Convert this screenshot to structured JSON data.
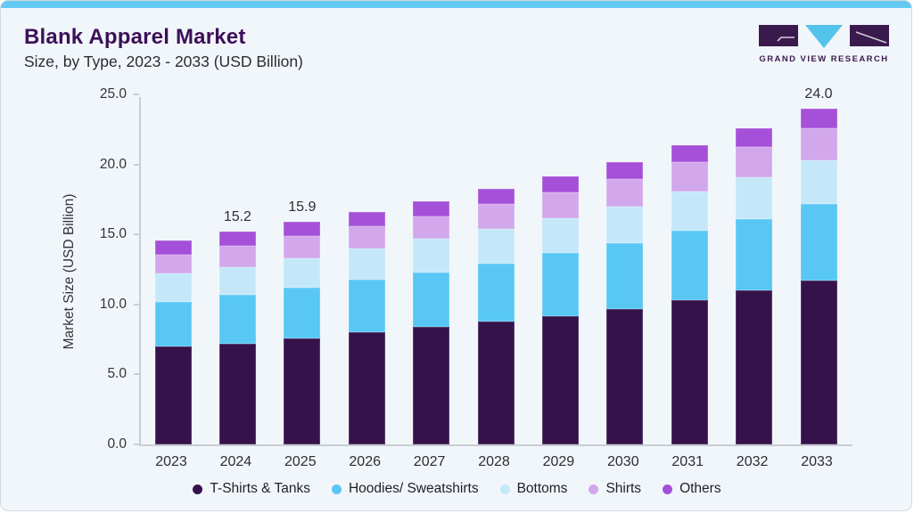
{
  "card": {
    "background": "#F1F6FA",
    "top_strip_color": "#63C8F2",
    "border_color": "#D3D9DF"
  },
  "header": {
    "title": "Blank Apparel Market",
    "subtitle": "Size, by Type, 2023 - 2033 (USD Billion)",
    "title_color": "#3C1058"
  },
  "logo": {
    "text": "GRAND VIEW RESEARCH",
    "block_color": "#3A1A4D",
    "triangle_color": "#54C3EC",
    "text_color": "#3B1B4F",
    "glyph_line_color": "#CFC9D8"
  },
  "chart_data": {
    "type": "bar",
    "stacked": true,
    "title": "Blank Apparel Market Size, by Type, 2023 - 2033 (USD Billion)",
    "xlabel": "",
    "ylabel": "Market Size (USD Billion)",
    "ylim": [
      0,
      25
    ],
    "ytick_labels": [
      "0.0",
      "5.0",
      "10.0",
      "15.0",
      "20.0",
      "25.0"
    ],
    "grid": false,
    "legend_position": "bottom",
    "categories": [
      "2023",
      "2024",
      "2025",
      "2026",
      "2027",
      "2028",
      "2029",
      "2030",
      "2031",
      "2032",
      "2033"
    ],
    "series": [
      {
        "name": "T-Shirts & Tanks",
        "color": "#36124B",
        "values": [
          7.0,
          7.2,
          7.6,
          8.0,
          8.4,
          8.8,
          9.2,
          9.7,
          10.3,
          11.0,
          11.7
        ]
      },
      {
        "name": "Hoodies/ Sweatshirts",
        "color": "#58C7F4",
        "values": [
          3.2,
          3.5,
          3.6,
          3.8,
          3.9,
          4.1,
          4.5,
          4.7,
          5.0,
          5.1,
          5.5
        ]
      },
      {
        "name": "Bottoms",
        "color": "#C4E8F9",
        "values": [
          2.0,
          2.0,
          2.1,
          2.2,
          2.4,
          2.5,
          2.5,
          2.6,
          2.8,
          3.0,
          3.1
        ]
      },
      {
        "name": "Shirts",
        "color": "#D2A7EC",
        "values": [
          1.4,
          1.5,
          1.6,
          1.6,
          1.6,
          1.8,
          1.8,
          2.0,
          2.1,
          2.2,
          2.3
        ]
      },
      {
        "name": "Others",
        "color": "#A550D8",
        "values": [
          1.0,
          1.0,
          1.0,
          1.0,
          1.1,
          1.1,
          1.2,
          1.2,
          1.2,
          1.3,
          1.4
        ]
      }
    ],
    "totals": [
      14.6,
      15.2,
      15.9,
      16.6,
      17.4,
      18.3,
      19.2,
      20.2,
      21.4,
      22.6,
      24.0
    ],
    "bar_labels": {
      "2024": "15.2",
      "2025": "15.9",
      "2033": "24.0"
    }
  }
}
